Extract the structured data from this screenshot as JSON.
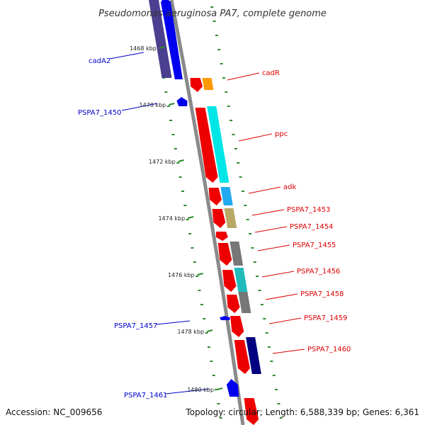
{
  "title": "Pseudomonas aeruginosa PA7, complete genome",
  "footer": {
    "accession": "Accession: NC_009656",
    "summary": "Topology: circular; Length: 6,588,339 bp; Genes: 6,361"
  },
  "colors": {
    "backbone": "#8a8a8a",
    "tick": "#2e8b2e",
    "forward_label": "#0000cc",
    "reverse_label": "#dd0000"
  },
  "kbp_ticks": [
    "1468 kbp",
    "1470 kbp",
    "1472 kbp",
    "1474 kbp",
    "1476 kbp",
    "1478 kbp",
    "1480 kbp"
  ],
  "genes_forward": [
    {
      "name": "cadA2",
      "color": "#0000ee",
      "cog_color": "#4b3f8f"
    },
    {
      "name": "PSPA7_1450",
      "color": "#0000ee"
    },
    {
      "name": "PSPA7_1457",
      "color": "#0000ee"
    },
    {
      "name": "PSPA7_1461",
      "color": "#0000ee"
    }
  ],
  "genes_reverse": [
    {
      "name": "cadR",
      "color": "#ee0000",
      "cog_color": "#ff9900"
    },
    {
      "name": "ppc",
      "color": "#ee0000",
      "cog_color": "#00e5e5"
    },
    {
      "name": "adk",
      "color": "#ee0000",
      "cog_color": "#22aaee"
    },
    {
      "name": "PSPA7_1453",
      "color": "#ee0000",
      "cog_color": "#b8a866"
    },
    {
      "name": "PSPA7_1454",
      "color": "#ee0000"
    },
    {
      "name": "PSPA7_1455",
      "color": "#ee0000",
      "cog_color": "#777777"
    },
    {
      "name": "PSPA7_1456",
      "color": "#ee0000",
      "cog_color": "#22bbbb"
    },
    {
      "name": "PSPA7_1458",
      "color": "#ee0000",
      "cog_color": "#777777"
    },
    {
      "name": "PSPA7_1459",
      "color": "#ee0000"
    },
    {
      "name": "PSPA7_1460",
      "color": "#ee0000",
      "cog_color": "#000080"
    }
  ]
}
